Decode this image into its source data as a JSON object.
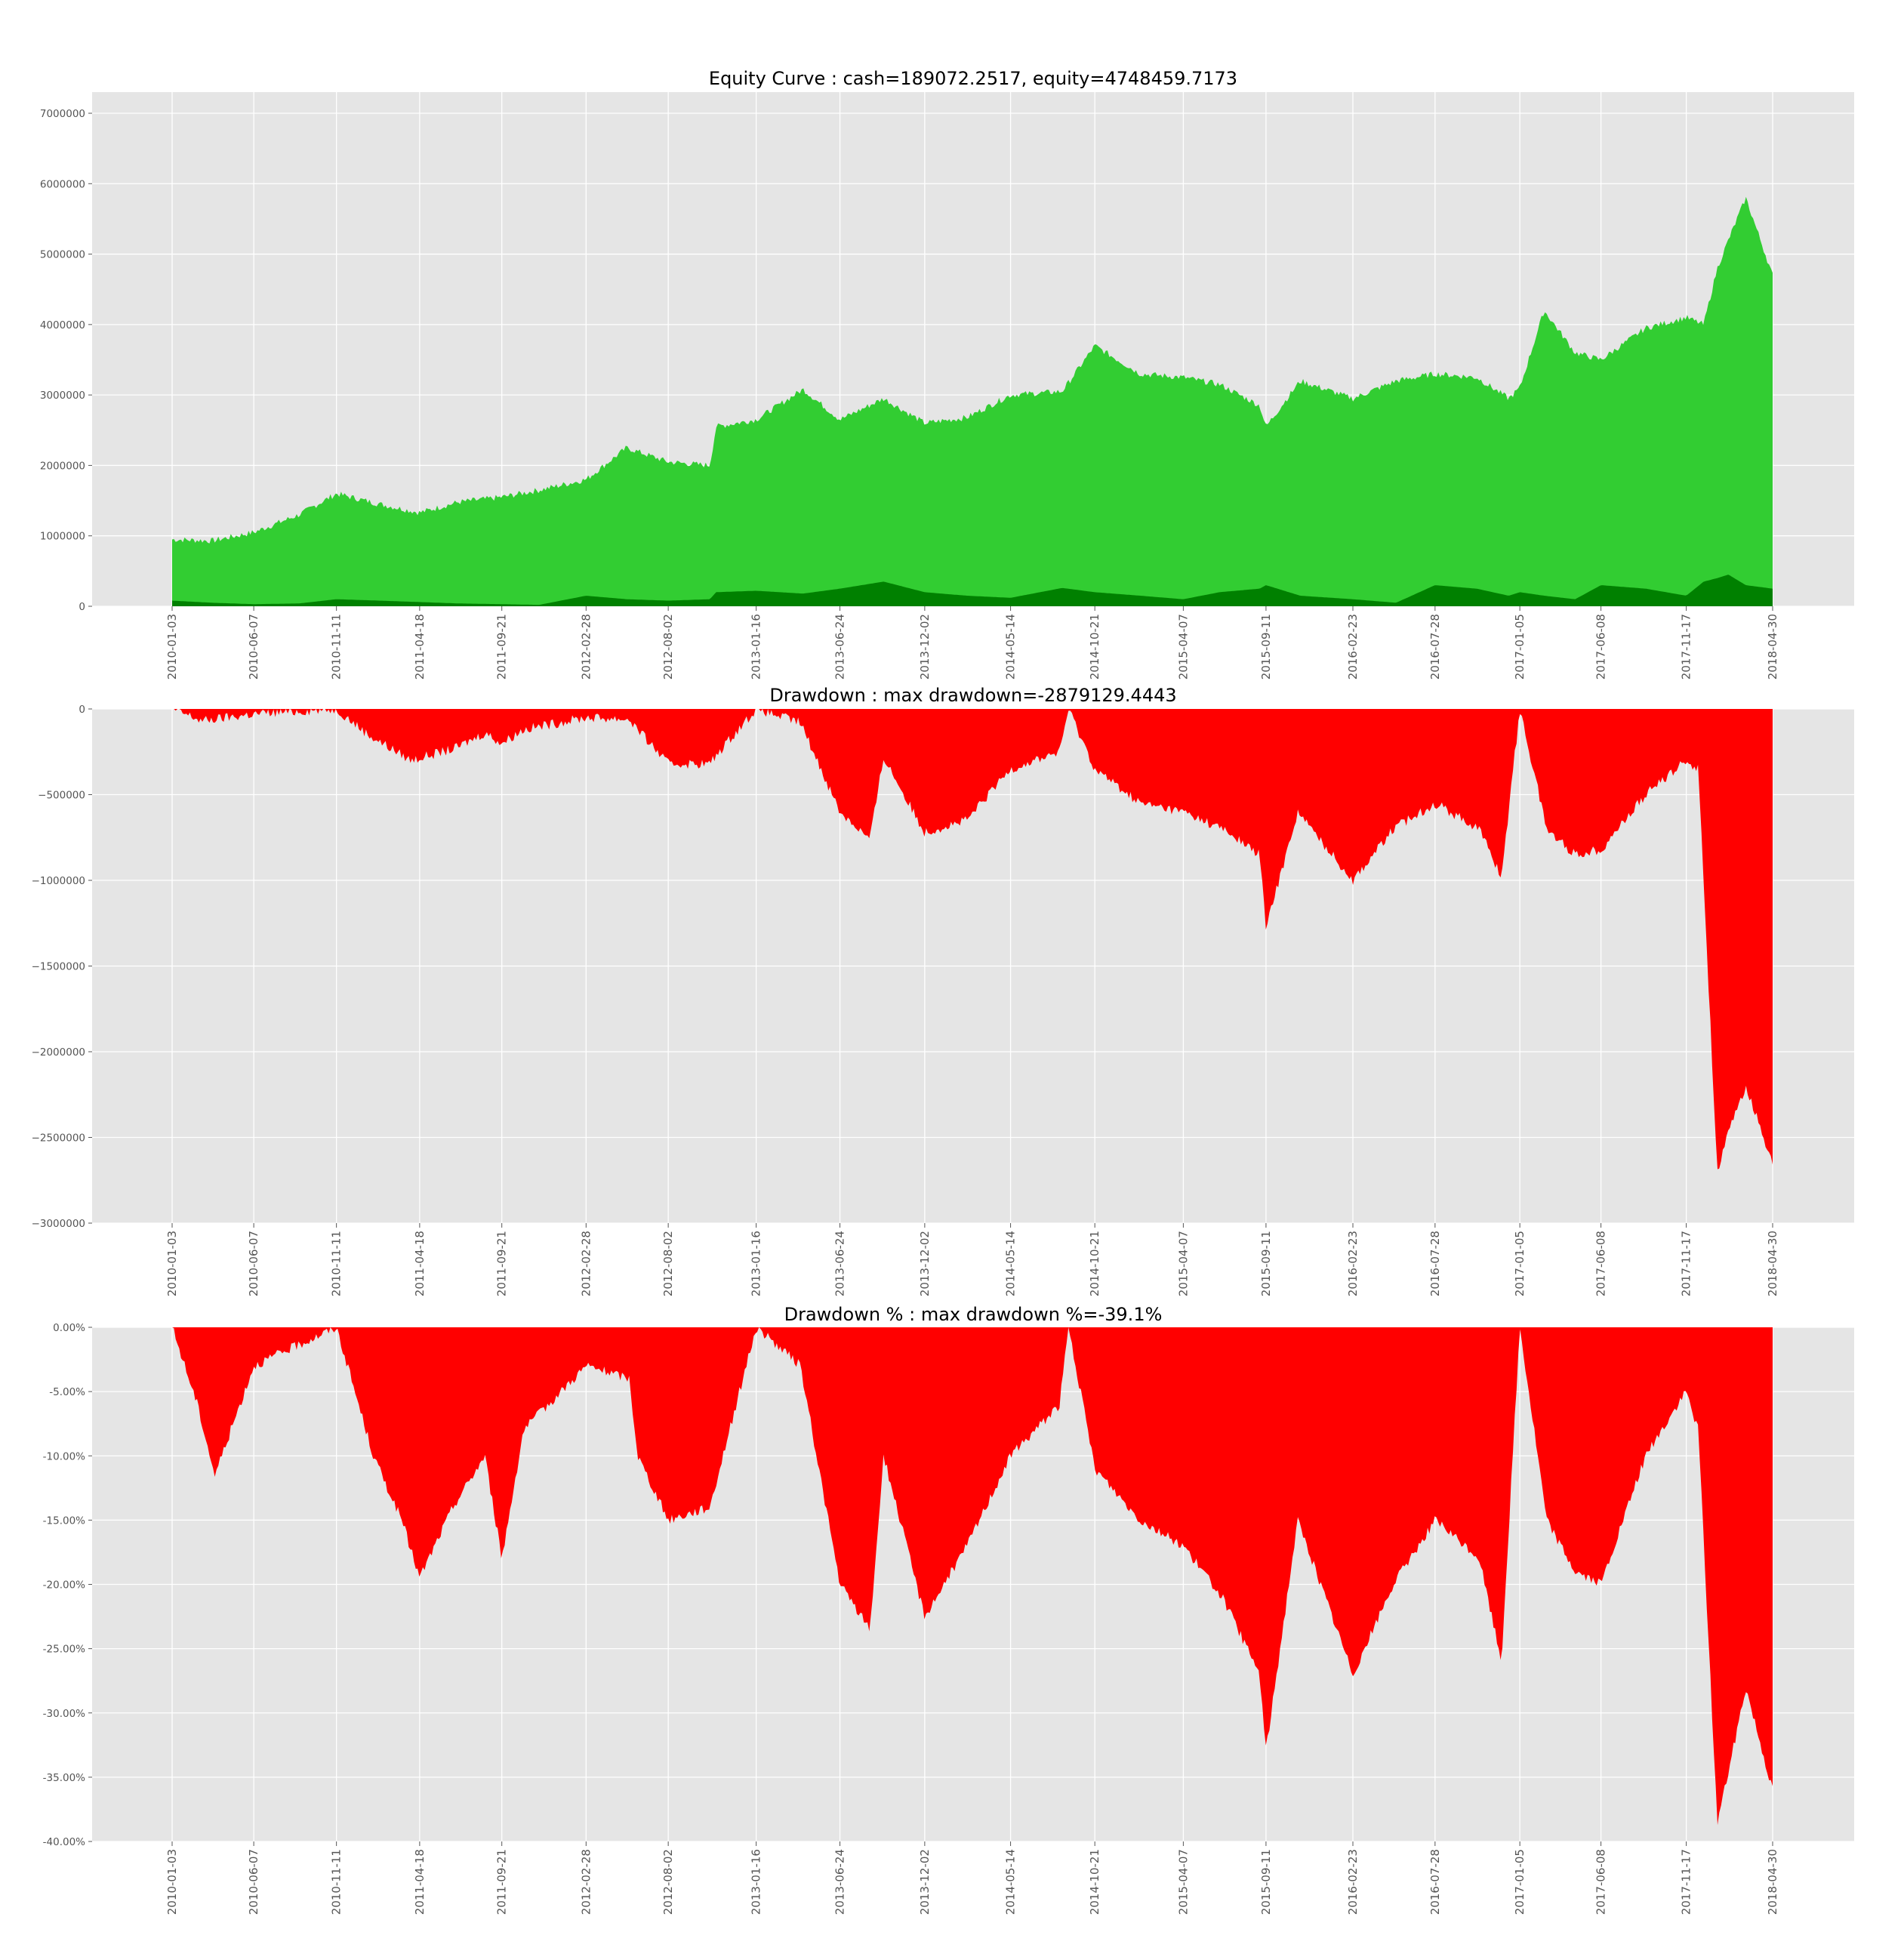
{
  "figure": {
    "background": "#ffffff"
  },
  "colors": {
    "plot_background": "#e5e5e5",
    "grid": "#ffffff",
    "equity_fill": "#32cd32",
    "position_fill": "#008000",
    "drawdown_fill": "#ff0000",
    "tick_text": "#555555",
    "title_text": "#000000"
  },
  "chart_data": [
    {
      "type": "area",
      "title": "Equity Curve : cash=189072.2517, equity=4748459.7173",
      "xlabel": "",
      "ylabel": "",
      "grid": true,
      "legend": "none",
      "ylim": [
        0,
        7300000
      ],
      "y_ticks": [
        0,
        1000000,
        2000000,
        3000000,
        4000000,
        5000000,
        6000000,
        7000000
      ],
      "y_tick_labels": [
        "0",
        "1000000",
        "2000000",
        "3000000",
        "4000000",
        "5000000",
        "6000000",
        "7000000"
      ],
      "x_tick_labels": [
        "2010-01-03",
        "2010-06-07",
        "2010-11-11",
        "2011-04-18",
        "2011-09-21",
        "2012-02-28",
        "2012-08-02",
        "2013-01-16",
        "2013-06-24",
        "2013-12-02",
        "2014-05-14",
        "2014-10-21",
        "2015-04-07",
        "2015-09-11",
        "2016-02-23",
        "2016-07-28",
        "2017-01-05",
        "2017-06-08",
        "2017-11-17",
        "2018-04-30"
      ],
      "x": [
        "2010-01-03",
        "2010-03-20",
        "2010-06-07",
        "2010-09-01",
        "2010-11-11",
        "2011-02-01",
        "2011-04-18",
        "2011-07-01",
        "2011-09-21",
        "2011-12-01",
        "2012-02-28",
        "2012-05-15",
        "2012-08-02",
        "2012-10-20",
        "2012-11-01",
        "2013-01-16",
        "2013-04-15",
        "2013-06-24",
        "2013-09-15",
        "2013-12-02",
        "2014-02-20",
        "2014-05-14",
        "2014-08-20",
        "2014-10-21",
        "2015-01-15",
        "2015-04-07",
        "2015-06-15",
        "2015-08-30",
        "2015-09-11",
        "2015-11-15",
        "2016-02-23",
        "2016-05-15",
        "2016-07-28",
        "2016-10-15",
        "2016-12-15",
        "2017-01-05",
        "2017-02-20",
        "2017-04-20",
        "2017-06-08",
        "2017-09-01",
        "2017-11-17",
        "2017-12-20",
        "2018-01-15",
        "2018-02-05",
        "2018-03-10",
        "2018-04-30"
      ],
      "series": [
        {
          "values": [
            950000,
            930000,
            1050000,
            1300000,
            1600000,
            1450000,
            1330000,
            1480000,
            1550000,
            1650000,
            1800000,
            2250000,
            2050000,
            2000000,
            2550000,
            2650000,
            3080000,
            2650000,
            2950000,
            2600000,
            2680000,
            3000000,
            3050000,
            3700000,
            3300000,
            3250000,
            3150000,
            2850000,
            2550000,
            3200000,
            2950000,
            3200000,
            3300000,
            3250000,
            2950000,
            3100000,
            4200000,
            3600000,
            3500000,
            3950000,
            4100000,
            4000000,
            4800000,
            5200000,
            5800000,
            4700000
          ]
        },
        {
          "values": [
            80000,
            50000,
            30000,
            40000,
            100000,
            80000,
            60000,
            40000,
            30000,
            20000,
            150000,
            100000,
            80000,
            100000,
            200000,
            220000,
            180000,
            250000,
            350000,
            200000,
            150000,
            120000,
            260000,
            200000,
            150000,
            100000,
            200000,
            250000,
            300000,
            150000,
            100000,
            50000,
            300000,
            250000,
            150000,
            200000,
            150000,
            100000,
            300000,
            250000,
            150000,
            350000,
            400000,
            450000,
            300000,
            250000
          ]
        }
      ]
    },
    {
      "type": "area",
      "title": "Drawdown : max drawdown=-2879129.4443",
      "xlabel": "",
      "ylabel": "",
      "grid": true,
      "legend": "none",
      "ylim": [
        -3000000,
        0
      ],
      "y_ticks": [
        0,
        -500000,
        -1000000,
        -1500000,
        -2000000,
        -2500000,
        -3000000
      ],
      "y_tick_labels": [
        "0",
        "−500000",
        "−1000000",
        "−1500000",
        "−2000000",
        "−2500000",
        "−3000000"
      ],
      "x_tick_labels": [
        "2010-01-03",
        "2010-06-07",
        "2010-11-11",
        "2011-04-18",
        "2011-09-21",
        "2012-02-28",
        "2012-08-02",
        "2013-01-16",
        "2013-06-24",
        "2013-12-02",
        "2014-05-14",
        "2014-10-21",
        "2015-04-07",
        "2015-09-11",
        "2016-02-23",
        "2016-07-28",
        "2017-01-05",
        "2017-06-08",
        "2017-11-17",
        "2018-04-30"
      ],
      "x": [
        "2010-01-03",
        "2010-03-01",
        "2010-06-07",
        "2010-11-11",
        "2011-01-10",
        "2011-04-01",
        "2011-06-25",
        "2011-08-20",
        "2011-09-21",
        "2011-11-01",
        "2012-02-28",
        "2012-05-20",
        "2012-06-05",
        "2012-08-02",
        "2012-10-20",
        "2012-11-20",
        "2013-01-16",
        "2013-04-10",
        "2013-06-24",
        "2013-08-20",
        "2013-09-15",
        "2013-11-10",
        "2013-12-02",
        "2014-02-20",
        "2014-05-14",
        "2014-08-15",
        "2014-09-01",
        "2014-10-21",
        "2015-01-15",
        "2015-04-07",
        "2015-06-20",
        "2015-08-30",
        "2015-09-11",
        "2015-11-10",
        "2016-02-23",
        "2016-05-10",
        "2016-07-28",
        "2016-10-20",
        "2016-12-01",
        "2017-01-05",
        "2017-02-25",
        "2017-04-20",
        "2017-06-08",
        "2017-09-01",
        "2017-11-17",
        "2017-12-10",
        "2018-01-15",
        "2018-02-08",
        "2018-03-10",
        "2018-04-30"
      ],
      "series": [
        {
          "values": [
            0,
            -70000,
            -30000,
            0,
            -150000,
            -300000,
            -230000,
            -140000,
            -200000,
            -120000,
            -50000,
            -60000,
            -120000,
            -320000,
            -320000,
            -200000,
            0,
            -80000,
            -600000,
            -760000,
            -280000,
            -600000,
            -720000,
            -650000,
            -350000,
            -250000,
            0,
            -350000,
            -550000,
            -600000,
            -700000,
            -850000,
            -1280000,
            -600000,
            -1000000,
            -700000,
            -550000,
            -700000,
            -980000,
            0,
            -700000,
            -850000,
            -820000,
            -500000,
            -300000,
            -350000,
            -2700000,
            -2450000,
            -2200000,
            -2650000
          ]
        }
      ]
    },
    {
      "type": "area",
      "title": "Drawdown % : max drawdown %=-39.1%",
      "xlabel": "",
      "ylabel": "",
      "grid": true,
      "legend": "none",
      "ylim": [
        -40.0,
        0
      ],
      "y_ticks": [
        0,
        -5,
        -10,
        -15,
        -20,
        -25,
        -30,
        -35,
        -40
      ],
      "y_tick_labels": [
        "0.00%",
        "-5.00%",
        "-10.00%",
        "-15.00%",
        "-20.00%",
        "-25.00%",
        "-30.00%",
        "-35.00%",
        "-40.00%"
      ],
      "x_tick_labels": [
        "2010-01-03",
        "2010-06-07",
        "2010-11-11",
        "2011-04-18",
        "2011-09-21",
        "2012-02-28",
        "2012-08-02",
        "2013-01-16",
        "2013-06-24",
        "2013-12-02",
        "2014-05-14",
        "2014-10-21",
        "2015-04-07",
        "2015-09-11",
        "2016-02-23",
        "2016-07-28",
        "2017-01-05",
        "2017-06-08",
        "2017-11-17",
        "2018-04-30"
      ],
      "x": [
        "2010-01-03",
        "2010-02-20",
        "2010-03-25",
        "2010-06-07",
        "2010-11-11",
        "2011-01-20",
        "2011-03-15",
        "2011-04-18",
        "2011-06-20",
        "2011-08-20",
        "2011-09-21",
        "2011-11-01",
        "2012-02-28",
        "2012-05-20",
        "2012-06-05",
        "2012-08-02",
        "2012-10-20",
        "2012-11-20",
        "2013-01-16",
        "2013-04-10",
        "2013-06-24",
        "2013-08-20",
        "2013-09-15",
        "2013-11-10",
        "2013-12-02",
        "2014-02-20",
        "2014-05-14",
        "2014-08-15",
        "2014-09-01",
        "2014-10-21",
        "2015-01-15",
        "2015-04-07",
        "2015-06-20",
        "2015-08-30",
        "2015-09-11",
        "2015-11-10",
        "2016-02-23",
        "2016-05-10",
        "2016-07-28",
        "2016-10-20",
        "2016-12-01",
        "2017-01-05",
        "2017-02-25",
        "2017-04-20",
        "2017-06-08",
        "2017-09-01",
        "2017-11-17",
        "2017-12-10",
        "2018-01-15",
        "2018-02-08",
        "2018-03-10",
        "2018-04-30"
      ],
      "series": [
        {
          "values": [
            0,
            -6,
            -11.5,
            -3,
            0,
            -10,
            -15,
            -19.5,
            -14,
            -10,
            -18,
            -8,
            -3,
            -4,
            -10,
            -15,
            -14,
            -9,
            0,
            -3,
            -20,
            -23.5,
            -10,
            -19,
            -22.5,
            -17,
            -10,
            -6,
            0,
            -11,
            -15,
            -17,
            -21,
            -27,
            -33,
            -15,
            -27,
            -20,
            -15,
            -18,
            -26,
            0,
            -15,
            -19,
            -20,
            -10,
            -5,
            -8,
            -38.5,
            -34,
            -28,
            -36
          ]
        }
      ]
    }
  ]
}
